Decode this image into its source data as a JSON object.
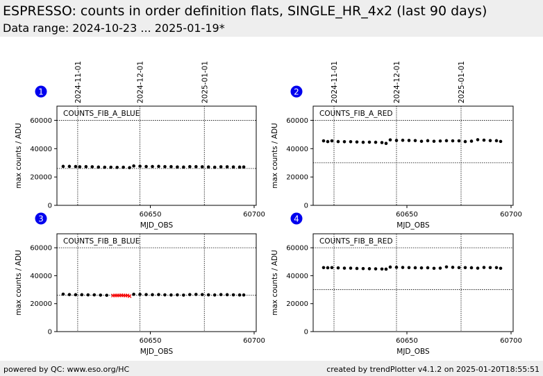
{
  "header": {
    "title": "ESPRESSO: counts in order definition flats, SINGLE_HR_4x2 (last 90 days)",
    "subtitle": "Data range: 2024-10-23 ... 2025-01-19*"
  },
  "footer": {
    "left": "powered by QC: www.eso.org/HC",
    "right": "created by trendPlotter v4.1.2 on 2025-01-20T18:55:51"
  },
  "colors": {
    "header_bg": "#eeeeee",
    "badge": "#0000ee",
    "normal": "#000000",
    "outlier": "#ff0000"
  },
  "date_ticks": [
    {
      "label": "2024-11-01",
      "mjd": 60615
    },
    {
      "label": "2024-12-01",
      "mjd": 60645
    },
    {
      "label": "2025-01-01",
      "mjd": 60676
    }
  ],
  "chart_data": [
    {
      "badge": "1",
      "type": "scatter",
      "label": "COUNTS_FIB_A_BLUE",
      "xlabel": "MJD_OBS",
      "ylabel": "max counts / ADU",
      "xlim": [
        60605,
        60701
      ],
      "ylim": [
        0,
        70000
      ],
      "xticks": [
        60650,
        60700
      ],
      "yticks": [
        0,
        20000,
        40000,
        60000
      ],
      "threshold_lines": [
        60000,
        26000
      ],
      "grid": false,
      "series": [
        {
          "x": [
            60608,
            60611,
            60614,
            60616,
            60619,
            60622,
            60625,
            60628,
            60631,
            60634,
            60637,
            60640,
            60642,
            60645,
            60648,
            60651,
            60654,
            60657,
            60660,
            60663,
            60666,
            60669,
            60672,
            60675,
            60678,
            60681,
            60684,
            60687,
            60690,
            60693,
            60695
          ],
          "y": [
            27500,
            27500,
            27400,
            27200,
            27300,
            27200,
            27000,
            26900,
            26900,
            26800,
            26900,
            26600,
            27800,
            27600,
            27400,
            27400,
            27500,
            27300,
            27300,
            27100,
            27000,
            27300,
            27300,
            27200,
            27100,
            26900,
            27200,
            27200,
            27100,
            27000,
            27100
          ]
        }
      ],
      "outliers": []
    },
    {
      "badge": "2",
      "type": "scatter",
      "label": "COUNTS_FIB_A_RED",
      "xlabel": "MJD_OBS",
      "ylabel": "max counts / ADU",
      "xlim": [
        60605,
        60701
      ],
      "ylim": [
        0,
        70000
      ],
      "xticks": [
        60650,
        60700
      ],
      "yticks": [
        0,
        20000,
        40000,
        60000
      ],
      "threshold_lines": [
        60000,
        30000
      ],
      "grid": false,
      "series": [
        {
          "x": [
            60610,
            60612,
            60614,
            60617,
            60620,
            60623,
            60626,
            60629,
            60632,
            60635,
            60638,
            60640,
            60642,
            60645,
            60648,
            60651,
            60654,
            60657,
            60660,
            60663,
            60666,
            60669,
            60672,
            60675,
            60678,
            60681,
            60684,
            60687,
            60690,
            60693,
            60695
          ],
          "y": [
            45500,
            45000,
            45500,
            45000,
            44900,
            44900,
            44700,
            44500,
            44600,
            44500,
            44300,
            43700,
            46200,
            45800,
            45900,
            45800,
            45700,
            45200,
            45600,
            45200,
            45400,
            45600,
            45500,
            45500,
            45000,
            45300,
            46300,
            46000,
            45700,
            45600,
            45100
          ]
        }
      ],
      "outliers": []
    },
    {
      "badge": "3",
      "type": "scatter",
      "label": "COUNTS_FIB_B_BLUE",
      "xlabel": "MJD_OBS",
      "ylabel": "max counts / ADU",
      "xlim": [
        60605,
        60701
      ],
      "ylim": [
        0,
        70000
      ],
      "xticks": [
        60650,
        60700
      ],
      "yticks": [
        0,
        20000,
        40000,
        60000
      ],
      "threshold_lines": [
        60000,
        26000
      ],
      "grid": false,
      "series": [
        {
          "x": [
            60608,
            60611,
            60614,
            60617,
            60620,
            60623,
            60626,
            60629,
            60642,
            60645,
            60648,
            60651,
            60654,
            60657,
            60660,
            60663,
            60666,
            60669,
            60672,
            60675,
            60678,
            60681,
            60684,
            60687,
            60690,
            60693,
            60695
          ],
          "y": [
            26800,
            26500,
            26400,
            26400,
            26300,
            26300,
            26100,
            26000,
            26700,
            26600,
            26500,
            26400,
            26500,
            26300,
            26200,
            26300,
            26100,
            26500,
            26600,
            26500,
            26300,
            26200,
            26500,
            26400,
            26300,
            26200,
            26200
          ]
        }
      ],
      "outliers": [
        {
          "x": [
            60632,
            60633,
            60634,
            60635,
            60636,
            60637,
            60638,
            60639,
            60640
          ],
          "y": [
            25800,
            25900,
            25900,
            25900,
            26000,
            25900,
            25800,
            25900,
            25400
          ]
        }
      ]
    },
    {
      "badge": "4",
      "type": "scatter",
      "label": "COUNTS_FIB_B_RED",
      "xlabel": "MJD_OBS",
      "ylabel": "max counts / ADU",
      "xlim": [
        60605,
        60701
      ],
      "ylim": [
        0,
        70000
      ],
      "xticks": [
        60650,
        60700
      ],
      "yticks": [
        0,
        20000,
        40000,
        60000
      ],
      "threshold_lines": [
        60000,
        30000
      ],
      "grid": false,
      "series": [
        {
          "x": [
            60610,
            60612,
            60614,
            60617,
            60620,
            60623,
            60626,
            60629,
            60632,
            60635,
            60638,
            60640,
            60642,
            60645,
            60648,
            60651,
            60654,
            60657,
            60660,
            60663,
            60666,
            60669,
            60672,
            60675,
            60678,
            60681,
            60684,
            60687,
            60690,
            60693,
            60695
          ],
          "y": [
            45800,
            45700,
            45800,
            45600,
            45400,
            45400,
            45200,
            45100,
            45000,
            44900,
            44800,
            44700,
            46200,
            46000,
            45900,
            45800,
            45700,
            45600,
            45700,
            45300,
            45400,
            46300,
            46000,
            45800,
            45800,
            45700,
            45400,
            45900,
            45800,
            45800,
            45300
          ]
        }
      ],
      "outliers": []
    }
  ]
}
